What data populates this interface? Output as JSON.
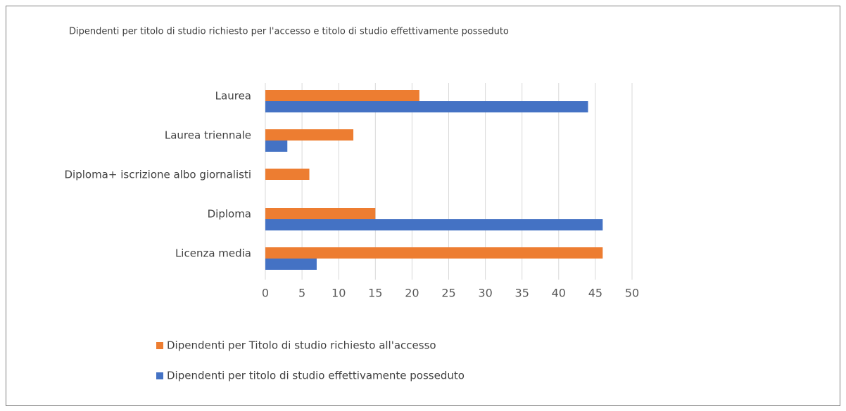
{
  "chart_data": {
    "type": "barh",
    "title": "Dipendenti per titolo di studio richiesto per l'accesso e titolo di studio effettivamente  posseduto",
    "categories": [
      "Laurea",
      "Laurea triennale",
      "Diploma+ iscrizione albo giornalisti",
      "Diploma",
      "Licenza media"
    ],
    "series": [
      {
        "name": "Dipendenti per Titolo di studio richiesto all'accesso",
        "color": "#ed7d31",
        "values": [
          21,
          12,
          6,
          15,
          46
        ]
      },
      {
        "name": "Dipendenti per titolo di studio effettivamente posseduto",
        "color": "#4472c4",
        "values": [
          44,
          3,
          0,
          46,
          7
        ]
      }
    ],
    "xlim": [
      0,
      50
    ],
    "xticks": [
      0,
      5,
      10,
      15,
      20,
      25,
      30,
      35,
      40,
      45,
      50
    ],
    "grid": true,
    "legend": "bottom"
  }
}
